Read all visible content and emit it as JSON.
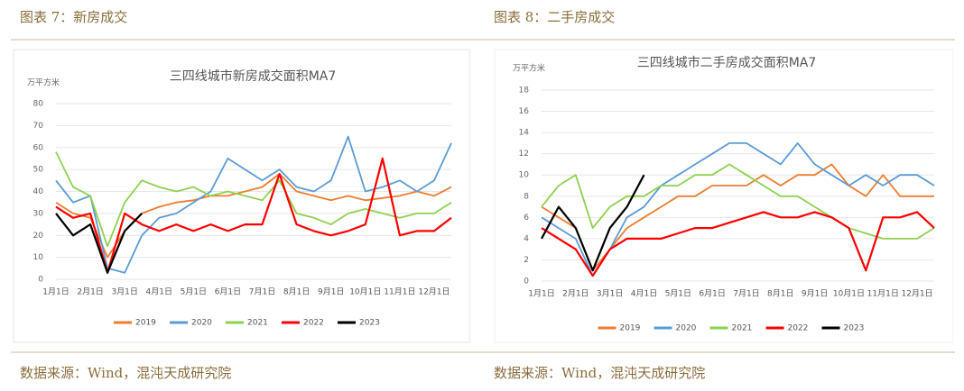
{
  "figures": [
    {
      "caption": "图表 7：新房成交",
      "source": "数据来源：Wind，混沌天成研究院"
    },
    {
      "caption": "图表 8：二手房成交",
      "source": "数据来源：Wind，混沌天成研究院"
    }
  ],
  "chart_data": [
    {
      "type": "line",
      "title": "三四线城市新房成交面积MA7",
      "y_label": "万平方米",
      "categories": [
        "1月1日",
        null,
        "2月1日",
        null,
        "3月1日",
        null,
        "4月1日",
        null,
        "5月1日",
        null,
        "6月1日",
        null,
        "7月1日",
        null,
        "8月1日",
        null,
        "9月1日",
        null,
        "10月1日",
        null,
        "11月1日",
        null,
        "12月1日",
        null
      ],
      "ylim": [
        0,
        80
      ],
      "yticks": [
        0,
        10,
        20,
        30,
        40,
        50,
        60,
        70,
        80
      ],
      "legend": "bottom",
      "series": [
        {
          "name": "2019",
          "color": "#ed7d31",
          "values": [
            35,
            30,
            28,
            10,
            22,
            30,
            33,
            35,
            36,
            38,
            38,
            40,
            42,
            48,
            40,
            38,
            36,
            38,
            36,
            37,
            38,
            40,
            38,
            42
          ]
        },
        {
          "name": "2020",
          "color": "#5b9bd5",
          "values": [
            45,
            35,
            38,
            5,
            3,
            20,
            28,
            30,
            35,
            40,
            55,
            50,
            45,
            50,
            42,
            40,
            45,
            65,
            40,
            42,
            45,
            40,
            45,
            62
          ]
        },
        {
          "name": "2021",
          "color": "#8fd14f",
          "values": [
            58,
            42,
            38,
            15,
            35,
            45,
            42,
            40,
            42,
            38,
            40,
            38,
            36,
            45,
            30,
            28,
            25,
            30,
            32,
            30,
            28,
            30,
            30,
            35
          ]
        },
        {
          "name": "2022",
          "color": "#ff0000",
          "values": [
            33,
            28,
            30,
            3,
            30,
            25,
            22,
            25,
            22,
            25,
            22,
            25,
            25,
            48,
            25,
            22,
            20,
            22,
            25,
            55,
            20,
            22,
            22,
            28
          ]
        },
        {
          "name": "2023",
          "color": "#000000",
          "values": [
            30,
            20,
            25,
            3,
            22,
            30,
            null,
            null,
            null,
            null,
            null,
            null,
            null,
            null,
            null,
            null,
            null,
            null,
            null,
            null,
            null,
            null,
            null,
            null
          ]
        }
      ]
    },
    {
      "type": "line",
      "title": "三四线城市二手房成交面积MA7",
      "y_label": "万平方米",
      "categories": [
        "1月1日",
        null,
        "2月1日",
        null,
        "3月1日",
        null,
        "4月1日",
        null,
        "5月1日",
        null,
        "6月1日",
        null,
        "7月1日",
        null,
        "8月1日",
        null,
        "9月1日",
        null,
        "10月1日",
        null,
        "11月1日",
        null,
        "12月1日",
        null
      ],
      "ylim": [
        0,
        18
      ],
      "yticks": [
        0,
        2,
        4,
        6,
        8,
        10,
        12,
        14,
        16,
        18
      ],
      "legend": "bottom",
      "series": [
        {
          "name": "2019",
          "color": "#ed7d31",
          "values": [
            7,
            6,
            5,
            1,
            3,
            5,
            6,
            7,
            8,
            8,
            9,
            9,
            9,
            10,
            9,
            10,
            10,
            11,
            9,
            8,
            10,
            8,
            8,
            8
          ]
        },
        {
          "name": "2020",
          "color": "#5b9bd5",
          "values": [
            6,
            5,
            4,
            0.5,
            3,
            6,
            7,
            9,
            10,
            11,
            12,
            13,
            13,
            12,
            11,
            13,
            11,
            10,
            9,
            10,
            9,
            10,
            10,
            9
          ]
        },
        {
          "name": "2021",
          "color": "#8fd14f",
          "values": [
            7,
            9,
            10,
            5,
            7,
            8,
            8,
            9,
            9,
            10,
            10,
            11,
            10,
            9,
            8,
            8,
            7,
            6,
            5,
            4.5,
            4,
            4,
            4,
            5
          ]
        },
        {
          "name": "2022",
          "color": "#ff0000",
          "values": [
            5,
            4,
            3,
            0.5,
            3,
            4,
            4,
            4,
            4.5,
            5,
            5,
            5.5,
            6,
            6.5,
            6,
            6,
            6.5,
            6,
            5,
            1,
            6,
            6,
            6.5,
            5
          ]
        },
        {
          "name": "2023",
          "color": "#000000",
          "values": [
            4,
            7,
            5,
            1,
            5,
            7,
            10,
            null,
            null,
            null,
            null,
            null,
            null,
            null,
            null,
            null,
            null,
            null,
            null,
            null,
            null,
            null,
            null,
            null
          ]
        }
      ]
    }
  ]
}
